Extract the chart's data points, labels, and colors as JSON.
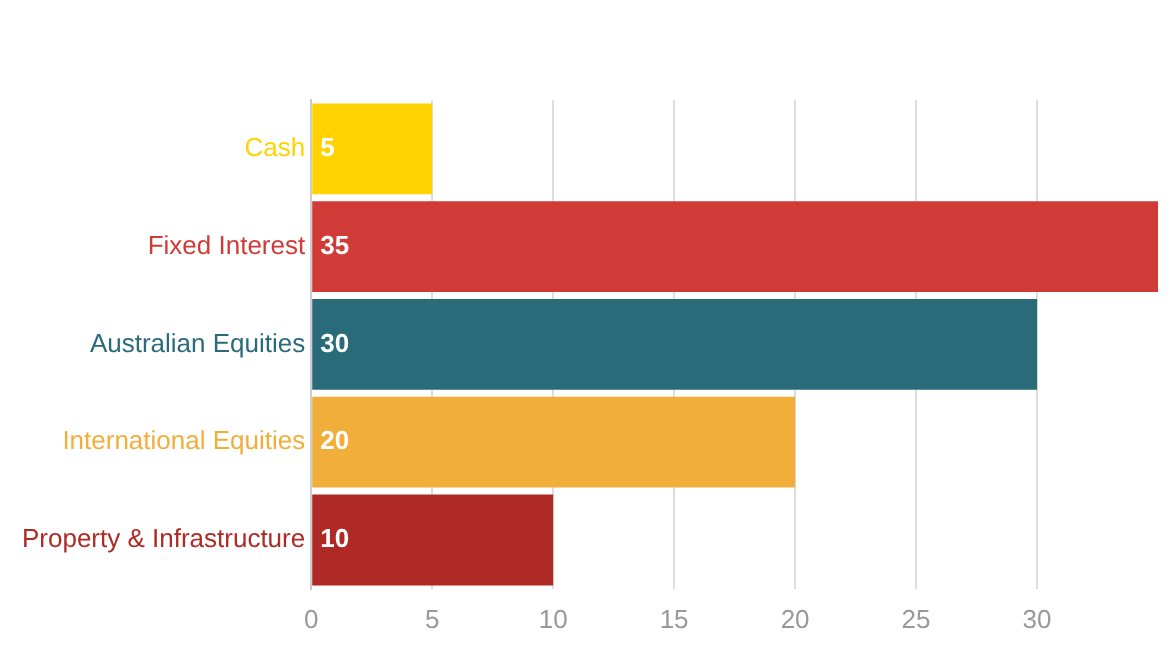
{
  "chart_data": {
    "type": "bar",
    "orientation": "horizontal",
    "categories": [
      "Cash",
      "Fixed Interest",
      "Australian Equities",
      "International Equities",
      "Property & Infrastructure"
    ],
    "values": [
      5,
      35,
      30,
      20,
      10
    ],
    "colors": [
      "#ffd200",
      "#d03a37",
      "#2a6b7a",
      "#f2ae3a",
      "#b02a25"
    ],
    "xlim": [
      0,
      35
    ],
    "xticks": [
      0,
      5,
      10,
      15,
      20,
      25,
      30
    ],
    "grid": "x",
    "data_labels": true,
    "legend": false
  }
}
